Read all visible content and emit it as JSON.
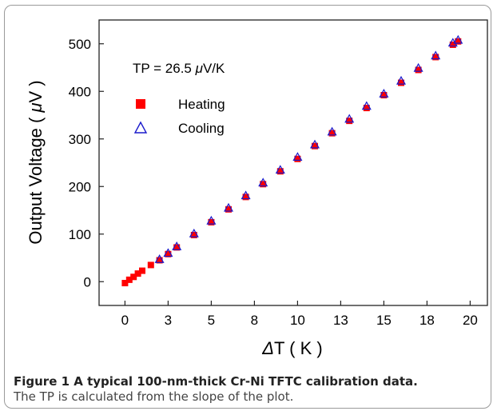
{
  "chart_data": {
    "type": "scatter",
    "annotation": {
      "prefix": "TP = 26.5 ",
      "mu": "μ",
      "suffix": "V/K"
    },
    "xlabel": {
      "delta": "Δ",
      "rest": "T ( K )"
    },
    "ylabel": {
      "prefix": "Output Voltage ( ",
      "mu": "μ",
      "suffix": "V )"
    },
    "xlim": [
      -1.5,
      21
    ],
    "ylim": [
      -50,
      550
    ],
    "x_ticks": [
      {
        "v": 0,
        "label": "0"
      },
      {
        "v": 2.5,
        "label": "3"
      },
      {
        "v": 5,
        "label": "5"
      },
      {
        "v": 7.5,
        "label": "8"
      },
      {
        "v": 10,
        "label": "10"
      },
      {
        "v": 12.5,
        "label": "13"
      },
      {
        "v": 15,
        "label": "15"
      },
      {
        "v": 17.5,
        "label": "18"
      },
      {
        "v": 20,
        "label": "20"
      }
    ],
    "y_ticks": [
      {
        "v": 0,
        "label": "0"
      },
      {
        "v": 100,
        "label": "100"
      },
      {
        "v": 200,
        "label": "200"
      },
      {
        "v": 300,
        "label": "300"
      },
      {
        "v": 400,
        "label": "400"
      },
      {
        "v": 500,
        "label": "500"
      }
    ],
    "series": [
      {
        "name": "Heating",
        "marker": "square",
        "color": "#ff0000",
        "x": [
          0.0,
          0.25,
          0.5,
          0.75,
          1.0,
          1.5,
          2.0,
          2.5,
          3.0,
          4.0,
          5.0,
          6.0,
          7.0,
          8.0,
          9.0,
          10.0,
          11.0,
          12.0,
          13.0,
          14.0,
          15.0,
          16.0,
          17.0,
          18.0,
          19.0,
          19.3
        ],
        "y": [
          -3,
          4,
          10,
          17,
          23,
          35,
          45,
          58,
          72,
          98,
          125,
          152,
          178,
          205,
          232,
          258,
          285,
          312,
          338,
          365,
          392,
          418,
          445,
          472,
          498,
          505
        ]
      },
      {
        "name": "Cooling",
        "marker": "triangle",
        "color": "#1a1acc",
        "x": [
          2.0,
          2.5,
          3.0,
          4.0,
          5.0,
          6.0,
          7.0,
          8.0,
          9.0,
          10.0,
          11.0,
          12.0,
          13.0,
          14.0,
          15.0,
          16.0,
          17.0,
          18.0,
          19.0,
          19.3
        ],
        "y": [
          47,
          60,
          74,
          101,
          128,
          155,
          181,
          208,
          235,
          262,
          288,
          315,
          342,
          369,
          395,
          422,
          449,
          475,
          502,
          508
        ]
      }
    ]
  },
  "caption": {
    "title": "Figure 1 A typical 100-nm-thick Cr-Ni TFTC calibration data.",
    "text": "The TP is calculated from the slope of the plot."
  }
}
